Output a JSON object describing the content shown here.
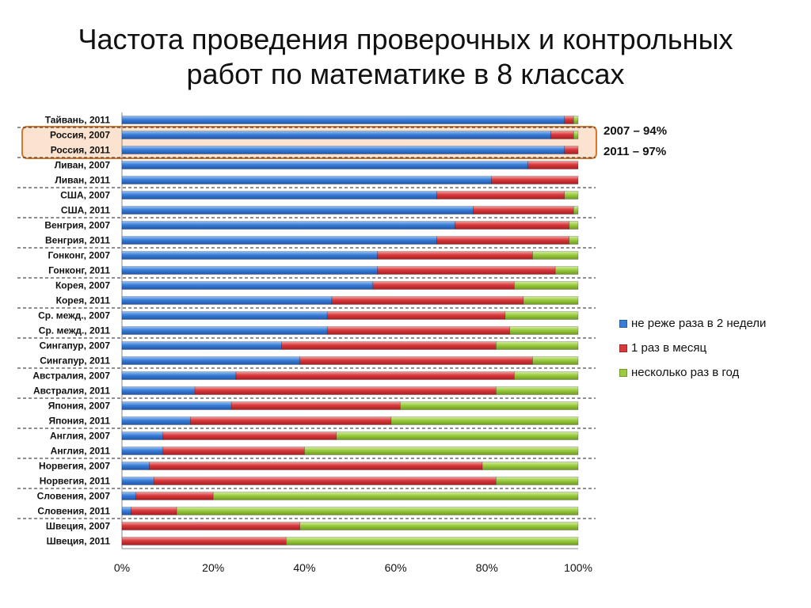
{
  "title_lines": [
    "Частота проведения проверочных и контрольных",
    "работ по математике в 8 классах"
  ],
  "notes": [
    "2007 – 94%",
    "2011 – 97%"
  ],
  "colors": {
    "blue": "#3a7dd8",
    "red": "#d9393c",
    "green": "#9bcc3f",
    "highlight_border": "#d9772a",
    "highlight_fill": "#fbe3cf"
  },
  "chart_data": {
    "type": "bar",
    "orientation": "horizontal",
    "stacked": "percent",
    "xlim": [
      0,
      100
    ],
    "x_ticks": [
      "0%",
      "20%",
      "40%",
      "60%",
      "80%",
      "100%"
    ],
    "legend_position": "right",
    "highlighted_categories": [
      "Россия, 2007",
      "Россия, 2011"
    ],
    "categories": [
      "Тайвань, 2011",
      "Россия, 2007",
      "Россия, 2011",
      "Ливан, 2007",
      "Ливан, 2011",
      "США, 2007",
      "США, 2011",
      "Венгрия, 2007",
      "Венгрия, 2011",
      "Гонконг, 2007",
      "Гонконг, 2011",
      "Корея, 2007",
      "Корея, 2011",
      "Ср. межд., 2007",
      "Ср. межд., 2011",
      "Сингапур, 2007",
      "Сингапур, 2011",
      "Австралия, 2007",
      "Австралия, 2011",
      "Япония, 2007",
      "Япония, 2011",
      "Англия, 2007",
      "Англия, 2011",
      "Норвегия, 2007",
      "Норвегия, 2011",
      "Словения, 2007",
      "Словения, 2011",
      "Швеция, 2007",
      "Швеция, 2011"
    ],
    "series": [
      {
        "name": "не реже раза в 2 недели",
        "color": "#3a7dd8",
        "values": [
          97,
          94,
          97,
          89,
          81,
          69,
          77,
          73,
          69,
          56,
          56,
          55,
          46,
          45,
          45,
          35,
          39,
          25,
          16,
          24,
          15,
          9,
          9,
          6,
          7,
          3,
          2,
          0,
          0
        ]
      },
      {
        "name": "1 раз в месяц",
        "color": "#d9393c",
        "values": [
          2,
          5,
          3,
          11,
          19,
          28,
          22,
          25,
          29,
          34,
          39,
          31,
          42,
          39,
          40,
          47,
          51,
          61,
          66,
          37,
          44,
          38,
          31,
          73,
          75,
          17,
          10,
          39,
          36
        ]
      },
      {
        "name": "несколько раз в год",
        "color": "#9bcc3f",
        "values": [
          1,
          1,
          0,
          0,
          0,
          3,
          1,
          2,
          2,
          10,
          5,
          14,
          12,
          16,
          15,
          18,
          10,
          14,
          18,
          39,
          41,
          53,
          60,
          21,
          18,
          80,
          88,
          61,
          64
        ]
      }
    ]
  }
}
